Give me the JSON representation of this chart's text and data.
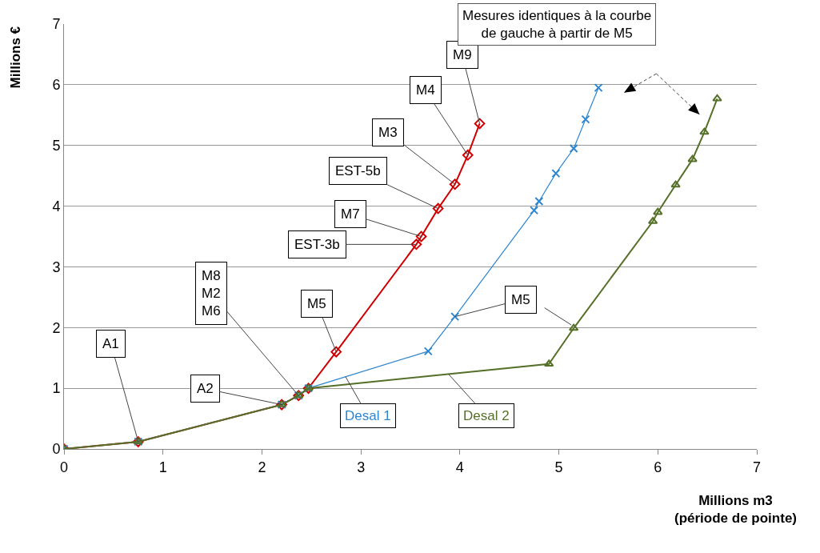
{
  "chart_data": {
    "type": "line",
    "xlabel": "Millions m3\n(période de pointe)",
    "ylabel": "Millions €",
    "xlim": [
      0,
      7
    ],
    "xticks": [
      0,
      1,
      2,
      3,
      4,
      5,
      6,
      7
    ],
    "ylim": [
      0,
      7
    ],
    "yticks": [
      0,
      1,
      2,
      3,
      4,
      5,
      6,
      7
    ],
    "grid": "y",
    "legend": false,
    "line_style": "solid",
    "series": [
      {
        "color": "#d00000",
        "marker": "diamond",
        "x": [
          0,
          0.75,
          2.2,
          2.37,
          2.47,
          2.75,
          3.56,
          3.61,
          3.78,
          3.95,
          4.08,
          4.2
        ],
        "values": [
          0,
          0.12,
          0.73,
          0.88,
          1.0,
          1.6,
          3.37,
          3.5,
          3.96,
          4.36,
          4.84,
          5.36
        ]
      },
      {
        "name": "Desal 1",
        "color": "#2e86d0",
        "marker": "cross",
        "x": [
          0,
          0.75,
          2.2,
          2.37,
          2.47,
          3.68,
          3.95,
          4.75,
          4.8,
          4.97,
          5.15,
          5.27,
          5.4
        ],
        "values": [
          0,
          0.12,
          0.73,
          0.88,
          1.0,
          1.61,
          2.18,
          3.93,
          4.08,
          4.54,
          4.95,
          5.43,
          5.95
        ]
      },
      {
        "name": "Desal 2",
        "color": "#557028",
        "marker": "triangle",
        "x": [
          0,
          0.75,
          2.2,
          2.37,
          2.47,
          4.9,
          5.15,
          5.95,
          6.0,
          6.18,
          6.35,
          6.47,
          6.6
        ],
        "values": [
          0,
          0.12,
          0.73,
          0.88,
          1.0,
          1.4,
          1.99,
          3.75,
          3.9,
          4.35,
          4.77,
          5.22,
          5.77
        ]
      }
    ],
    "annotations": [
      {
        "text": "A1",
        "x": 0.75,
        "y": 0.12
      },
      {
        "text": "A2",
        "x": 2.2,
        "y": 0.73
      },
      {
        "text": "M8\nM2\nM6",
        "x": 2.37,
        "y": 0.88
      },
      {
        "text": "M5",
        "x": 2.75,
        "y": 1.6
      },
      {
        "text": "EST-3b",
        "x": 3.56,
        "y": 3.37
      },
      {
        "text": "M7",
        "x": 3.61,
        "y": 3.5
      },
      {
        "text": "EST-5b",
        "x": 3.78,
        "y": 3.96
      },
      {
        "text": "M3",
        "x": 3.95,
        "y": 4.36
      },
      {
        "text": "M4",
        "x": 4.08,
        "y": 4.84
      },
      {
        "text": "M9",
        "x": 4.2,
        "y": 5.36
      },
      {
        "text": "M5",
        "x": 3.95,
        "y": 2.18
      },
      "Mesures identiques à la courbe\nde gauche à partir de M5"
    ]
  }
}
